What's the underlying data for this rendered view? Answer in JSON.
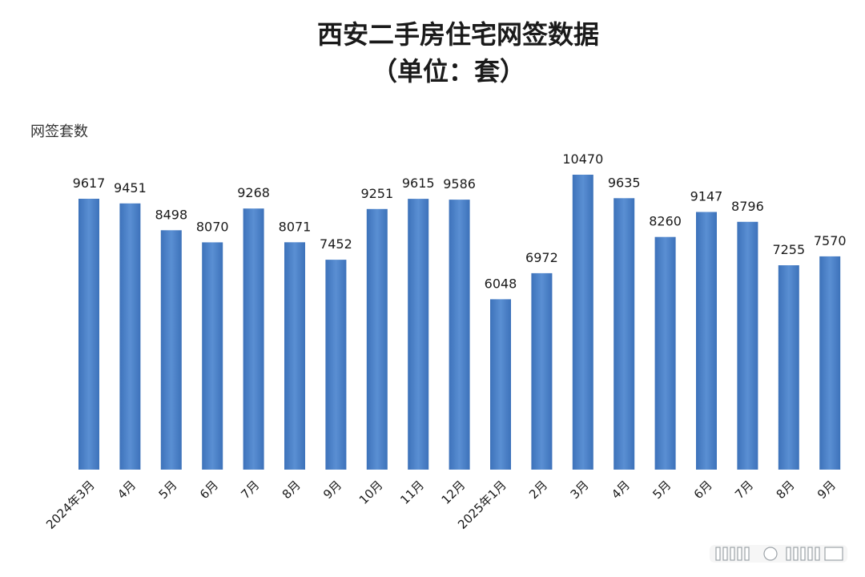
{
  "chart_data": {
    "type": "bar",
    "title": "西安二手房住宅网签数据",
    "subtitle": "（单位：套）",
    "ylabel": "网签套数",
    "xlabel": "",
    "categories": [
      "2024年3月",
      "4月",
      "5月",
      "6月",
      "7月",
      "8月",
      "9月",
      "10月",
      "11月",
      "12月",
      "2025年1月",
      "2月",
      "3月",
      "4月",
      "5月",
      "6月",
      "7月",
      "8月",
      "9月"
    ],
    "values": [
      9617,
      9451,
      8498,
      8070,
      9268,
      8071,
      7452,
      9251,
      9615,
      9586,
      6048,
      6972,
      10470,
      9635,
      8260,
      9147,
      8796,
      7255,
      7570
    ],
    "ylim": [
      0,
      10470
    ],
    "grid": false,
    "bar_color": "#4a7fc4",
    "bar_color_edge": "#3a6cb0"
  },
  "watermark": {
    "text": "头条 @ 观察"
  }
}
